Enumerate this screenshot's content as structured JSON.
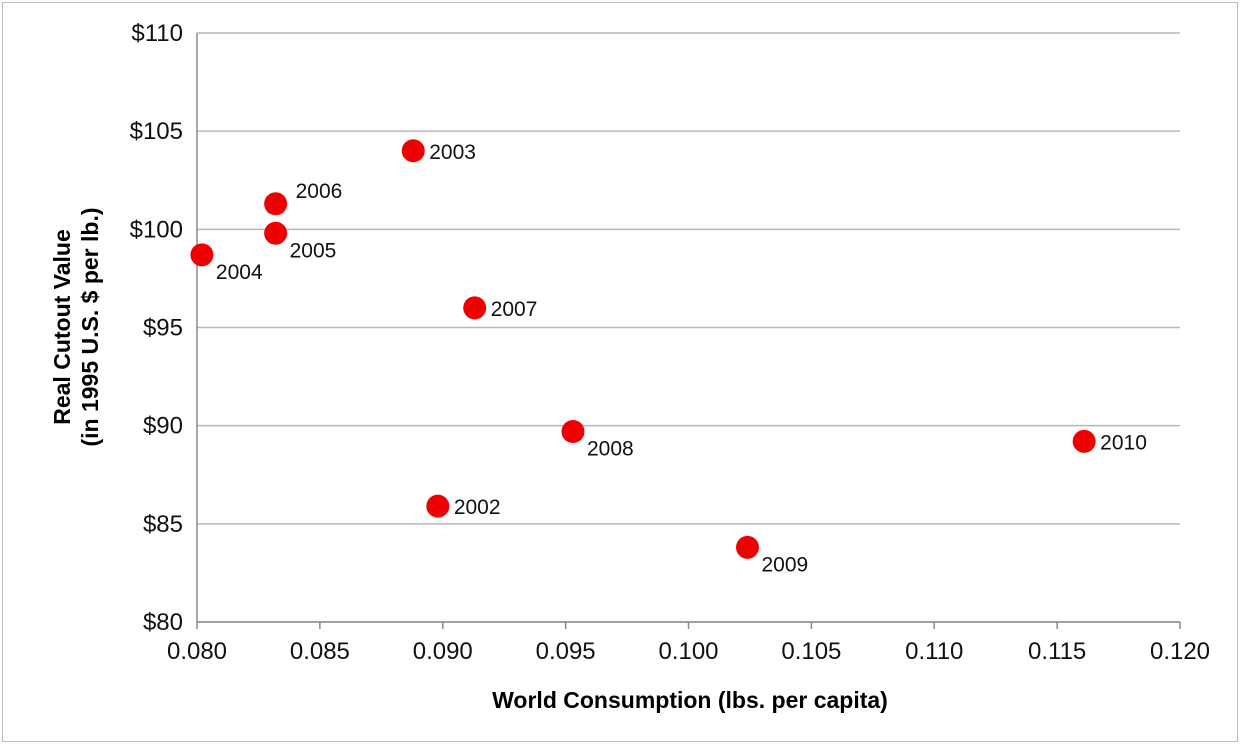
{
  "chart_data": {
    "type": "scatter",
    "title": "",
    "xlabel": "World Consumption  (lbs. per capita)",
    "ylabel_line1": "Real Cutout Value",
    "ylabel_line2": "(in 1995 U.S. $ per lb.)",
    "xlim": [
      0.08,
      0.12
    ],
    "ylim": [
      80,
      110
    ],
    "x_ticks": [
      0.08,
      0.085,
      0.09,
      0.095,
      0.1,
      0.105,
      0.11,
      0.115,
      0.12
    ],
    "x_tick_labels": [
      "0.080",
      "0.085",
      "0.090",
      "0.095",
      "0.100",
      "0.105",
      "0.110",
      "0.115",
      "0.120"
    ],
    "y_ticks": [
      80,
      85,
      90,
      95,
      100,
      105,
      110
    ],
    "y_tick_labels": [
      "$80",
      "$85",
      "$90",
      "$95",
      "$100",
      "$105",
      "$110"
    ],
    "grid": "horizontal",
    "legend": "none",
    "marker_color": "#ee0000",
    "points": [
      {
        "label": "2002",
        "x": 0.0898,
        "y": 85.9,
        "label_pos": "right"
      },
      {
        "label": "2003",
        "x": 0.0888,
        "y": 104.0,
        "label_pos": "right"
      },
      {
        "label": "2004",
        "x": 0.0802,
        "y": 98.7,
        "label_pos": "below-right"
      },
      {
        "label": "2005",
        "x": 0.0832,
        "y": 99.8,
        "label_pos": "below-right"
      },
      {
        "label": "2006",
        "x": 0.0832,
        "y": 101.3,
        "label_pos": "above-right"
      },
      {
        "label": "2007",
        "x": 0.0913,
        "y": 96.0,
        "label_pos": "right"
      },
      {
        "label": "2008",
        "x": 0.0953,
        "y": 89.7,
        "label_pos": "below-right"
      },
      {
        "label": "2009",
        "x": 0.1024,
        "y": 83.8,
        "label_pos": "below-right"
      },
      {
        "label": "2010",
        "x": 0.1161,
        "y": 89.2,
        "label_pos": "right"
      }
    ]
  }
}
